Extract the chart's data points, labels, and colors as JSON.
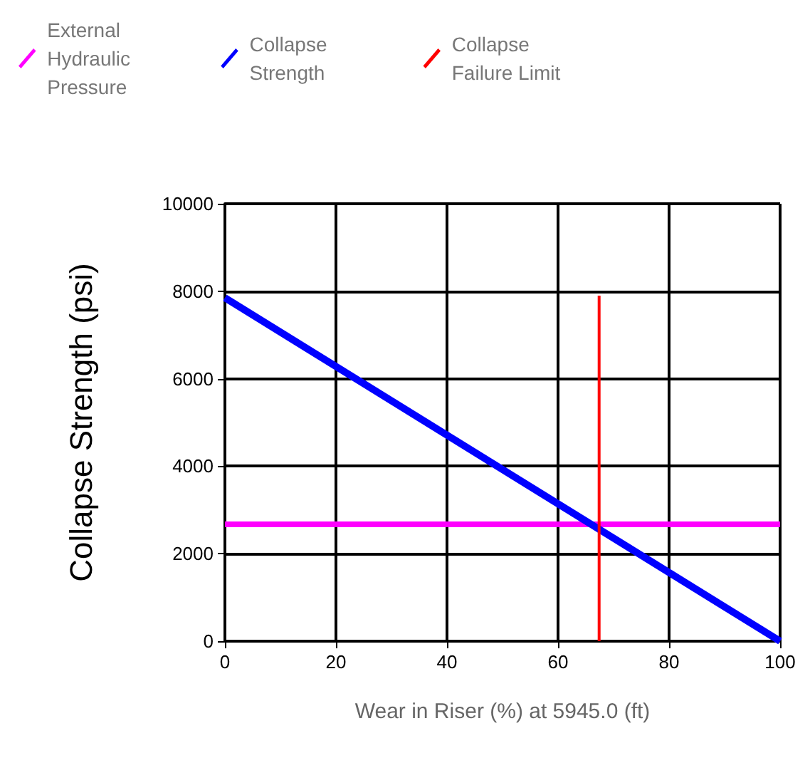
{
  "chart_data": {
    "type": "line",
    "xlabel": "Wear in Riser (%) at 5945.0 (ft)",
    "ylabel": "Collapse Strength (psi)",
    "series": [
      {
        "name": "External Hydraulic Pressure",
        "color": "#ff00ff",
        "x": [
          0,
          100
        ],
        "values": [
          2670,
          2670
        ]
      },
      {
        "name": "Collapse Strength",
        "color": "#0000ff",
        "x": [
          0,
          100
        ],
        "values": [
          7850,
          0
        ]
      },
      {
        "name": "Collapse Failure Limit",
        "color": "#ff0000",
        "x": [
          67.4,
          67.4
        ],
        "values": [
          0,
          7900
        ]
      }
    ],
    "xlim": [
      0,
      100
    ],
    "xticks": [
      0,
      20,
      40,
      60,
      80,
      100
    ],
    "ylim": [
      0,
      10000
    ],
    "yticks": [
      0,
      2000,
      4000,
      6000,
      8000,
      10000
    ],
    "grid": true,
    "legend": "top",
    "line_style": "solid"
  }
}
